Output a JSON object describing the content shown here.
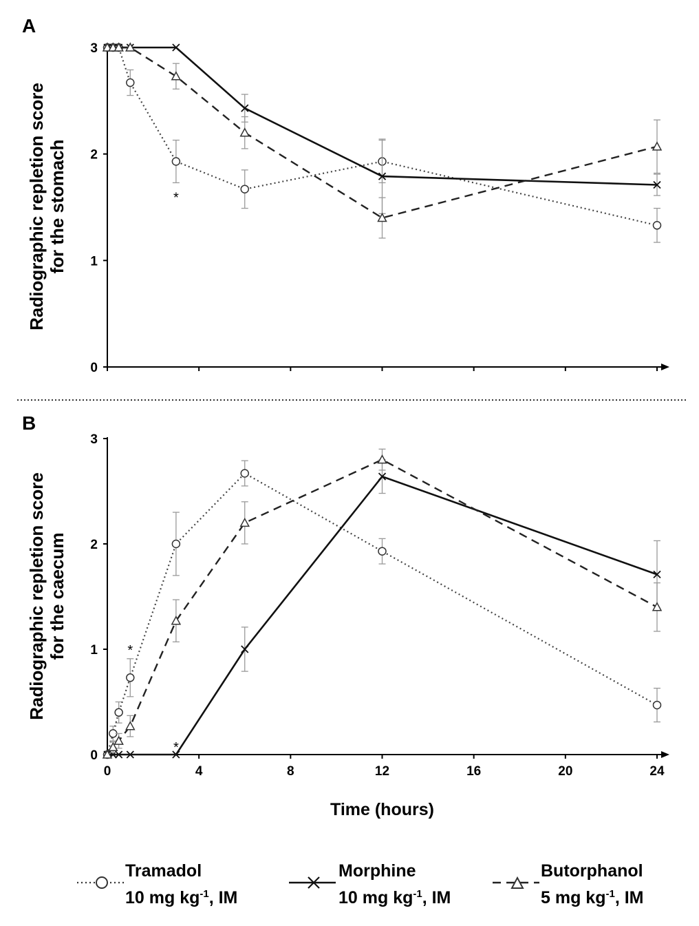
{
  "chart_data": [
    {
      "panel": "A",
      "type": "line",
      "ylabel": [
        "Radiographic repletion score",
        "for the stomach"
      ],
      "xlabel": "",
      "xlim": [
        0,
        24
      ],
      "ylim": [
        0,
        3
      ],
      "yticks": [
        "0",
        "1",
        "2",
        "3"
      ],
      "xticks": [],
      "series": [
        {
          "name": "Tramadol",
          "x": [
            0,
            0.25,
            0.5,
            1,
            3,
            6,
            12,
            24
          ],
          "y": [
            3,
            3,
            3,
            2.67,
            1.93,
            1.67,
            1.93,
            1.33
          ],
          "err": [
            0,
            0,
            0,
            0.12,
            0.2,
            0.18,
            0.2,
            0.16
          ]
        },
        {
          "name": "Morphine",
          "x": [
            0,
            0.25,
            0.5,
            1,
            3,
            6,
            12,
            24
          ],
          "y": [
            3,
            3,
            3,
            3,
            3,
            2.43,
            1.79,
            1.71
          ],
          "err": [
            0,
            0,
            0,
            0,
            0,
            0.13,
            0.35,
            0.1
          ]
        },
        {
          "name": "Butorphanol",
          "x": [
            0,
            0.25,
            0.5,
            1,
            3,
            6,
            12,
            24
          ],
          "y": [
            3,
            3,
            3,
            3,
            2.73,
            2.2,
            1.4,
            2.07
          ],
          "err": [
            0,
            0,
            0,
            0,
            0.12,
            0.15,
            0.19,
            0.25
          ]
        }
      ],
      "annotations": [
        {
          "text": "*",
          "x": 3,
          "y": 1.6
        }
      ]
    },
    {
      "panel": "B",
      "type": "line",
      "ylabel": [
        "Radiographic repletion score",
        "for the caecum"
      ],
      "xlabel": "Time (hours)",
      "xlim": [
        0,
        24
      ],
      "ylim": [
        0,
        3
      ],
      "yticks": [
        "0",
        "1",
        "2",
        "3"
      ],
      "xticks": [
        "0",
        "4",
        "8",
        "12",
        "16",
        "20",
        "24"
      ],
      "series": [
        {
          "name": "Tramadol",
          "x": [
            0,
            0.25,
            0.5,
            1,
            3,
            6,
            12,
            24
          ],
          "y": [
            0,
            0.2,
            0.4,
            0.73,
            2.0,
            2.67,
            1.93,
            0.47
          ],
          "err": [
            0,
            0.07,
            0.1,
            0.18,
            0.3,
            0.12,
            0.12,
            0.16
          ]
        },
        {
          "name": "Morphine",
          "x": [
            0,
            0.25,
            0.5,
            1,
            3,
            6,
            12,
            24
          ],
          "y": [
            0,
            0,
            0,
            0,
            0,
            1.0,
            2.64,
            1.71
          ],
          "err": [
            0,
            0,
            0,
            0,
            0,
            0.21,
            0.16,
            0.32
          ]
        },
        {
          "name": "Butorphanol",
          "x": [
            0,
            0.25,
            0.5,
            1,
            3,
            6,
            12,
            24
          ],
          "y": [
            0,
            0.07,
            0.13,
            0.27,
            1.27,
            2.2,
            2.8,
            1.4
          ],
          "err": [
            0,
            0.05,
            0.07,
            0.1,
            0.2,
            0.2,
            0.1,
            0.23
          ]
        }
      ],
      "annotations": [
        {
          "text": "*",
          "x": 1,
          "y": 1.0
        },
        {
          "text": "*",
          "x": 3,
          "y": 0.08
        }
      ]
    }
  ],
  "legend": [
    {
      "drug": "Tramadol",
      "dose_prefix": "10 mg kg",
      "dose_exp": "-1",
      "dose_suffix": ", IM"
    },
    {
      "drug": "Morphine",
      "dose_prefix": "10 mg kg",
      "dose_exp": "-1",
      "dose_suffix": ", IM"
    },
    {
      "drug": "Butorphanol",
      "dose_prefix": "5 mg kg",
      "dose_exp": "-1",
      "dose_suffix": ", IM"
    }
  ]
}
